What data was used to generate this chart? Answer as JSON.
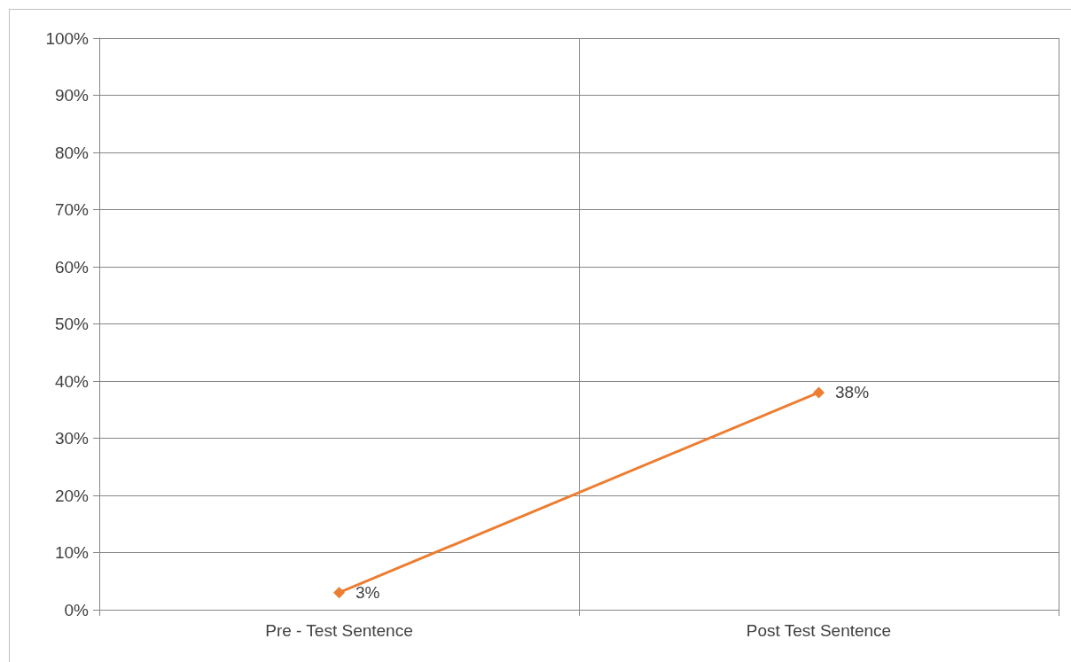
{
  "chart_data": {
    "type": "line",
    "categories": [
      "Pre - Test Sentence",
      "Post Test Sentence"
    ],
    "series": [
      {
        "color": "#ed7d31",
        "values": [
          3,
          38
        ],
        "value_labels": [
          "3%",
          "38%"
        ]
      }
    ],
    "ylim": [
      0,
      100
    ],
    "yticks": [
      {
        "value": 0,
        "label": "0%"
      },
      {
        "value": 10,
        "label": "10%"
      },
      {
        "value": 20,
        "label": "20%"
      },
      {
        "value": 30,
        "label": "30%"
      },
      {
        "value": 40,
        "label": "40%"
      },
      {
        "value": 50,
        "label": "50%"
      },
      {
        "value": 60,
        "label": "60%"
      },
      {
        "value": 70,
        "label": "70%"
      },
      {
        "value": 80,
        "label": "80%"
      },
      {
        "value": 90,
        "label": "90%"
      },
      {
        "value": 100,
        "label": "100%"
      }
    ],
    "grid": true,
    "marker": "diamond",
    "line_style": "solid"
  }
}
